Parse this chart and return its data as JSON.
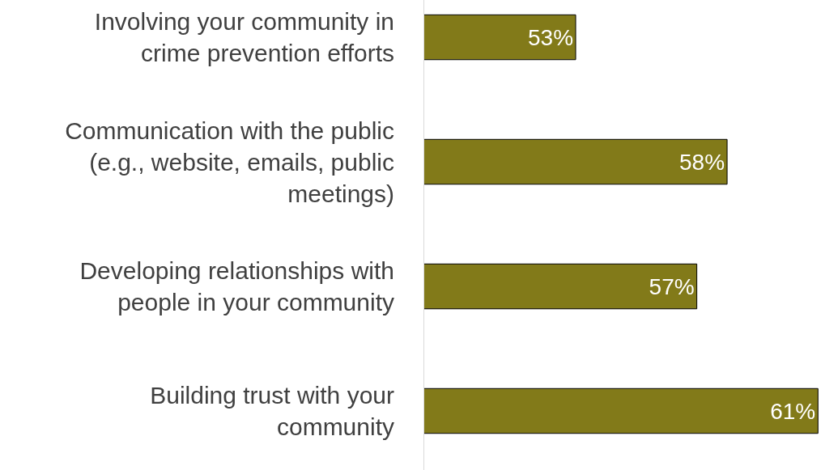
{
  "chart_data": {
    "type": "bar",
    "orientation": "horizontal",
    "categories": [
      "Involving your community in crime prevention efforts",
      "Communication with the public (e.g., website, emails, public meetings)",
      "Developing relationships with people in your community",
      "Building trust with your community"
    ],
    "values": [
      53,
      58,
      57,
      61
    ],
    "value_labels": [
      "53%",
      "58%",
      "57%",
      "61%"
    ],
    "color": "#827a19",
    "xlim": [
      48,
      61.1
    ],
    "tick_labels": "y"
  }
}
